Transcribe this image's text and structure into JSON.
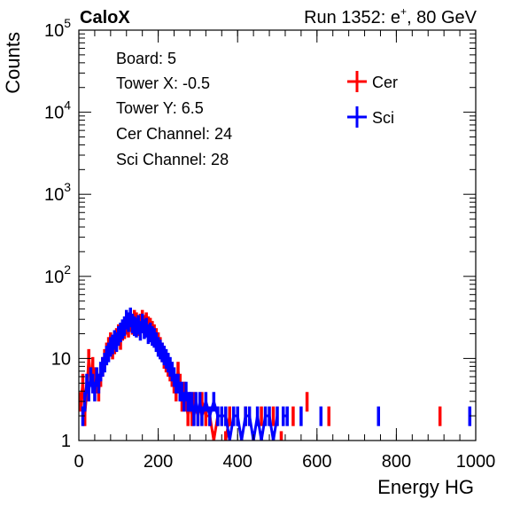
{
  "header": {
    "brand": "CaloX",
    "run_label": "Run 1352: e",
    "run_sup": "+",
    "run_energy": ", 80 GeV"
  },
  "info": {
    "board": "Board: 5",
    "tower_x": "Tower X: -0.5",
    "tower_y": "Tower Y: 6.5",
    "cer_channel": "Cer Channel: 24",
    "sci_channel": "Sci Channel: 28"
  },
  "chart_data": {
    "type": "line",
    "xlabel": "Energy HG",
    "ylabel": "Counts",
    "xlim": [
      0,
      1000
    ],
    "ylim": [
      1,
      100000
    ],
    "y_log": true,
    "x_ticks": [
      "0",
      "200",
      "400",
      "600",
      "800",
      "1000"
    ],
    "y_ticks": [
      {
        "base": "1",
        "exp": ""
      },
      {
        "base": "10",
        "exp": ""
      },
      {
        "base": "10",
        "exp": "2"
      },
      {
        "base": "10",
        "exp": "3"
      },
      {
        "base": "10",
        "exp": "4"
      },
      {
        "base": "10",
        "exp": "5"
      }
    ],
    "grid": false,
    "legend": {
      "position": "top-right"
    },
    "series": [
      {
        "name": "Cer",
        "color": "#ff0000",
        "points": [
          [
            5,
            3
          ],
          [
            10,
            5
          ],
          [
            15,
            2
          ],
          [
            20,
            4
          ],
          [
            25,
            10
          ],
          [
            30,
            6
          ],
          [
            35,
            8
          ],
          [
            40,
            6
          ],
          [
            45,
            5
          ],
          [
            50,
            4
          ],
          [
            55,
            6
          ],
          [
            60,
            8
          ],
          [
            65,
            10
          ],
          [
            70,
            12
          ],
          [
            75,
            14
          ],
          [
            80,
            16
          ],
          [
            85,
            13
          ],
          [
            90,
            15
          ],
          [
            95,
            18
          ],
          [
            100,
            20
          ],
          [
            105,
            17
          ],
          [
            110,
            22
          ],
          [
            115,
            23
          ],
          [
            120,
            26
          ],
          [
            125,
            24
          ],
          [
            130,
            28
          ],
          [
            135,
            26
          ],
          [
            140,
            30
          ],
          [
            145,
            28
          ],
          [
            150,
            25
          ],
          [
            155,
            27
          ],
          [
            160,
            30
          ],
          [
            165,
            26
          ],
          [
            170,
            28
          ],
          [
            175,
            25
          ],
          [
            180,
            24
          ],
          [
            185,
            22
          ],
          [
            190,
            20
          ],
          [
            195,
            18
          ],
          [
            200,
            16
          ],
          [
            205,
            14
          ],
          [
            210,
            12
          ],
          [
            215,
            10
          ],
          [
            220,
            9
          ],
          [
            225,
            8
          ],
          [
            230,
            7
          ],
          [
            235,
            6
          ],
          [
            240,
            5
          ],
          [
            245,
            4
          ],
          [
            250,
            7
          ],
          [
            255,
            5
          ],
          [
            260,
            3
          ],
          [
            265,
            4
          ],
          [
            270,
            3
          ],
          [
            275,
            2
          ],
          [
            280,
            3
          ],
          [
            285,
            2
          ],
          [
            290,
            3
          ],
          [
            300,
            2
          ],
          [
            310,
            3
          ],
          [
            320,
            2
          ],
          [
            330,
            2
          ],
          [
            340,
            1
          ],
          [
            350,
            2
          ],
          [
            370,
            1
          ],
          [
            380,
            2
          ],
          [
            420,
            2
          ],
          [
            440,
            1
          ],
          [
            460,
            2
          ],
          [
            490,
            2
          ],
          [
            510,
            1
          ],
          [
            540,
            2
          ],
          [
            575,
            3
          ],
          [
            630,
            2
          ],
          [
            910,
            2
          ]
        ]
      },
      {
        "name": "Sci",
        "color": "#0000ff",
        "points": [
          [
            10,
            2
          ],
          [
            15,
            3
          ],
          [
            20,
            5
          ],
          [
            25,
            4
          ],
          [
            30,
            6
          ],
          [
            35,
            5
          ],
          [
            40,
            4
          ],
          [
            45,
            6
          ],
          [
            50,
            5
          ],
          [
            55,
            7
          ],
          [
            60,
            8
          ],
          [
            65,
            9
          ],
          [
            70,
            11
          ],
          [
            75,
            12
          ],
          [
            80,
            14
          ],
          [
            85,
            15
          ],
          [
            90,
            17
          ],
          [
            95,
            16
          ],
          [
            100,
            19
          ],
          [
            105,
            21
          ],
          [
            110,
            23
          ],
          [
            115,
            25
          ],
          [
            120,
            30
          ],
          [
            125,
            28
          ],
          [
            130,
            32
          ],
          [
            135,
            27
          ],
          [
            140,
            25
          ],
          [
            145,
            24
          ],
          [
            150,
            26
          ],
          [
            155,
            22
          ],
          [
            160,
            27
          ],
          [
            165,
            23
          ],
          [
            170,
            24
          ],
          [
            175,
            20
          ],
          [
            180,
            21
          ],
          [
            185,
            19
          ],
          [
            190,
            18
          ],
          [
            195,
            16
          ],
          [
            200,
            14
          ],
          [
            205,
            13
          ],
          [
            210,
            12
          ],
          [
            215,
            11
          ],
          [
            220,
            10
          ],
          [
            225,
            9
          ],
          [
            230,
            8
          ],
          [
            235,
            7
          ],
          [
            240,
            6
          ],
          [
            245,
            5
          ],
          [
            250,
            5
          ],
          [
            255,
            4
          ],
          [
            260,
            4
          ],
          [
            265,
            3
          ],
          [
            270,
            4
          ],
          [
            275,
            3
          ],
          [
            280,
            3
          ],
          [
            285,
            3
          ],
          [
            290,
            2
          ],
          [
            295,
            3
          ],
          [
            300,
            2
          ],
          [
            305,
            3
          ],
          [
            310,
            2
          ],
          [
            320,
            3
          ],
          [
            330,
            2
          ],
          [
            340,
            3
          ],
          [
            350,
            2
          ],
          [
            360,
            2
          ],
          [
            370,
            2
          ],
          [
            380,
            1
          ],
          [
            390,
            2
          ],
          [
            400,
            2
          ],
          [
            410,
            1
          ],
          [
            420,
            2
          ],
          [
            430,
            2
          ],
          [
            440,
            1
          ],
          [
            450,
            2
          ],
          [
            460,
            1
          ],
          [
            470,
            2
          ],
          [
            480,
            2
          ],
          [
            490,
            1
          ],
          [
            500,
            2
          ],
          [
            515,
            2
          ],
          [
            525,
            2
          ],
          [
            560,
            2
          ],
          [
            610,
            2
          ],
          [
            755,
            2
          ],
          [
            985,
            2
          ]
        ]
      }
    ]
  }
}
